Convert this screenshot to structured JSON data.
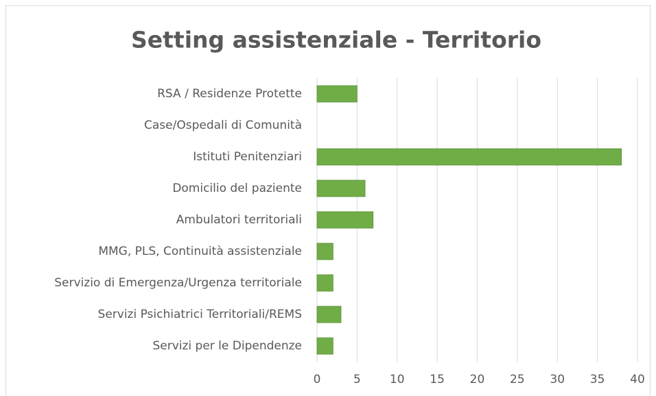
{
  "chart_data": {
    "type": "bar",
    "orientation": "horizontal",
    "title": "Setting assistenziale - Territorio",
    "categories": [
      "RSA / Residenze Protette",
      "Case/Ospedali di Comunità",
      "Istituti Penitenziari",
      "Domicilio del paziente",
      "Ambulatori territoriali",
      "MMG, PLS, Continuità assistenziale",
      "Servizio di Emergenza/Urgenza territoriale",
      "Servizi Psichiatrici Territoriali/REMS",
      "Servizi per le Dipendenze"
    ],
    "values": [
      5,
      0,
      38,
      6,
      7,
      2,
      2,
      3,
      2
    ],
    "color": "#70ad47",
    "xlim": [
      0,
      40
    ],
    "xticks": [
      0,
      5,
      10,
      15,
      20,
      25,
      30,
      35,
      40
    ],
    "grid": true
  }
}
